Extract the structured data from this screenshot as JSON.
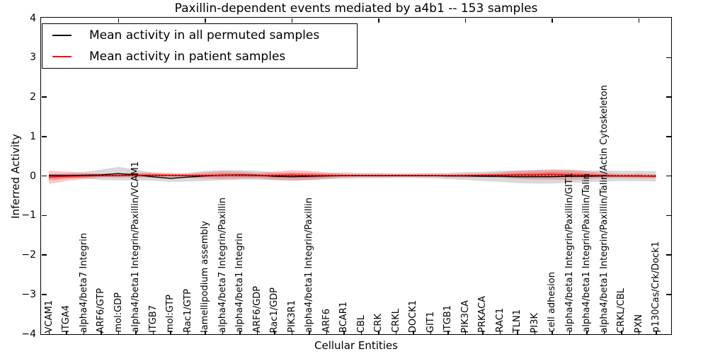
{
  "title": "Paxillin-dependent events mediated by a4b1 -- 153 samples",
  "axes": {
    "x_label": "Cellular Entities",
    "y_label": "Inferred Activity",
    "y_ticks": {
      "values": [
        4,
        3,
        2,
        1,
        0,
        -1,
        -2,
        -3,
        -4
      ],
      "labels": [
        "4",
        "3",
        "2",
        "1",
        "0",
        "−1",
        "−2",
        "−3",
        "−4"
      ]
    }
  },
  "legend": {
    "entries": [
      {
        "label": "Mean activity in all permuted samples",
        "color": "#000000"
      },
      {
        "label": "Mean activity in patient samples",
        "color": "#ff0000"
      }
    ]
  },
  "chart_data": {
    "type": "line",
    "title": "Paxillin-dependent events mediated by a4b1 -- 153 samples",
    "xlabel": "Cellular Entities",
    "ylabel": "Inferred Activity",
    "ylim": [
      -4,
      4
    ],
    "grid": false,
    "legend_position": "upper left",
    "zero_line_style": "dotted",
    "categories": [
      "VCAM1",
      "ITGA4",
      "alpha4/beta7 Integrin",
      "ARF6/GTP",
      "mol:GDP",
      "alpha4/beta1 Integrin/Paxillin/VCAM1",
      "ITGB7",
      "mol:GTP",
      "Rac1/GTP",
      "lamellipodium assembly",
      "alpha4/beta7 Integrin/Paxillin",
      "alpha4/beta1 Integrin",
      "ARF6/GDP",
      "Rac1/GDP",
      "PIK3R1",
      "alpha4/beta1 Integrin/Paxillin",
      "ARF6",
      "BCAR1",
      "CBL",
      "CRK",
      "CRKL",
      "DOCK1",
      "GIT1",
      "ITGB1",
      "PIK3CA",
      "PRKACA",
      "RAC1",
      "TLN1",
      "PI3K",
      "cell adhesion",
      "alpha4/beta1 Integrin/Paxillin/GIT1",
      "alpha4/beta1 Integrin/Paxillin/Talin",
      "alpha4/beta1 Integrin/Paxillin/Talin/Actin Cytoskeleton",
      "CRKL/CBL",
      "PXN",
      "p130Cas/Crk/Dock1"
    ],
    "series": [
      {
        "name": "Mean activity in all permuted samples",
        "color": "#000000",
        "band_color": "rgba(0,0,0,0.15)",
        "values": [
          0.0,
          0.0,
          0.01,
          0.02,
          0.05,
          0.02,
          -0.03,
          -0.07,
          -0.04,
          -0.01,
          0.01,
          0.02,
          0.01,
          -0.02,
          -0.03,
          -0.02,
          -0.01,
          0.0,
          0.0,
          0.0,
          0.0,
          0.0,
          0.0,
          -0.01,
          -0.01,
          -0.02,
          -0.02,
          -0.03,
          -0.03,
          -0.03,
          -0.02,
          -0.02,
          -0.01,
          -0.01,
          -0.01,
          -0.02
        ],
        "band_halfwidth": [
          0.05,
          0.06,
          0.08,
          0.13,
          0.17,
          0.14,
          0.1,
          0.09,
          0.11,
          0.13,
          0.13,
          0.12,
          0.11,
          0.1,
          0.1,
          0.09,
          0.08,
          0.08,
          0.07,
          0.07,
          0.06,
          0.06,
          0.07,
          0.08,
          0.1,
          0.12,
          0.14,
          0.16,
          0.17,
          0.17,
          0.16,
          0.15,
          0.14,
          0.13,
          0.13,
          0.13
        ]
      },
      {
        "name": "Mean activity in patient samples",
        "color": "#ff0000",
        "band_color": "rgba(255,0,0,0.22)",
        "values": [
          -0.04,
          -0.02,
          -0.01,
          0.0,
          0.0,
          0.01,
          0.01,
          0.01,
          0.0,
          0.0,
          0.01,
          0.01,
          0.0,
          0.0,
          0.01,
          0.0,
          0.0,
          0.0,
          0.0,
          0.0,
          0.0,
          0.0,
          0.0,
          0.0,
          0.0,
          0.01,
          0.01,
          0.02,
          0.02,
          0.03,
          0.02,
          0.01,
          0.0,
          -0.01,
          -0.01,
          -0.02
        ],
        "band_halfwidth": [
          0.17,
          0.12,
          0.08,
          0.05,
          0.05,
          0.06,
          0.07,
          0.06,
          0.05,
          0.08,
          0.1,
          0.09,
          0.07,
          0.1,
          0.13,
          0.12,
          0.08,
          0.05,
          0.04,
          0.04,
          0.04,
          0.04,
          0.04,
          0.04,
          0.05,
          0.05,
          0.07,
          0.1,
          0.12,
          0.13,
          0.13,
          0.1,
          0.07,
          0.05,
          0.06,
          0.05
        ]
      }
    ]
  }
}
